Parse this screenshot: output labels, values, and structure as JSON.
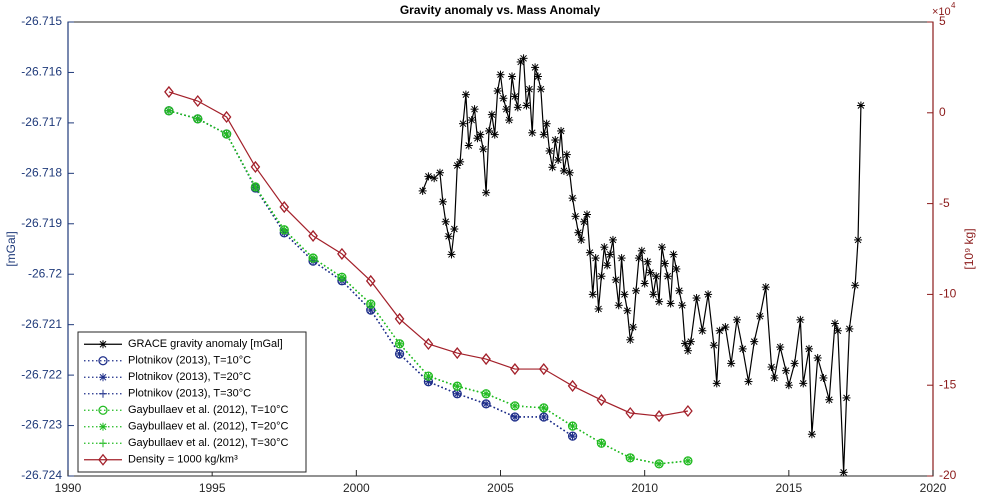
{
  "chart_data": {
    "type": "line",
    "title": "Gravity anomaly vs. Mass Anomaly",
    "ylabel": "[mGal]",
    "y2label": "[10⁹ kg]",
    "y2_multiplier_base": "×10",
    "y2_multiplier_exp": "4",
    "xlim": [
      1990,
      2020
    ],
    "xticks": [
      1990,
      1995,
      2000,
      2005,
      2010,
      2015,
      2020
    ],
    "ylim": [
      -26.724,
      -26.715
    ],
    "yticks": [
      -26.724,
      -26.723,
      -26.722,
      -26.721,
      -26.72,
      -26.719,
      -26.718,
      -26.717,
      -26.716,
      -26.715
    ],
    "y2lim": [
      -20,
      5
    ],
    "y2ticks": [
      -20,
      -15,
      -10,
      -5,
      0,
      5
    ],
    "legend": "lower left",
    "grid": false,
    "series": [
      {
        "name": "GRACE gravity anomaly [mGal]",
        "color": "#000000",
        "marker": "asterisk",
        "linestyle": "solid",
        "axis": "y2",
        "x": [
          2002.3,
          2002.5,
          2002.7,
          2002.9,
          2003.0,
          2003.1,
          2003.2,
          2003.3,
          2003.4,
          2003.5,
          2003.6,
          2003.7,
          2003.8,
          2003.9,
          2004.0,
          2004.1,
          2004.2,
          2004.3,
          2004.4,
          2004.5,
          2004.6,
          2004.7,
          2004.8,
          2004.9,
          2005.0,
          2005.1,
          2005.2,
          2005.3,
          2005.4,
          2005.5,
          2005.6,
          2005.7,
          2005.8,
          2005.9,
          2006.0,
          2006.1,
          2006.2,
          2006.3,
          2006.4,
          2006.5,
          2006.6,
          2006.7,
          2006.8,
          2006.9,
          2007.0,
          2007.1,
          2007.2,
          2007.3,
          2007.4,
          2007.5,
          2007.6,
          2007.7,
          2007.8,
          2007.9,
          2008.0,
          2008.1,
          2008.2,
          2008.3,
          2008.4,
          2008.5,
          2008.6,
          2008.7,
          2008.8,
          2008.9,
          2009.0,
          2009.1,
          2009.2,
          2009.3,
          2009.4,
          2009.5,
          2009.6,
          2009.7,
          2009.8,
          2009.9,
          2010.0,
          2010.1,
          2010.2,
          2010.3,
          2010.4,
          2010.5,
          2010.6,
          2010.7,
          2010.8,
          2010.9,
          2011.0,
          2011.1,
          2011.2,
          2011.3,
          2011.4,
          2011.5,
          2011.6,
          2011.8,
          2012.0,
          2012.2,
          2012.4,
          2012.5,
          2012.6,
          2012.8,
          2013.0,
          2013.2,
          2013.4,
          2013.6,
          2013.8,
          2014.0,
          2014.2,
          2014.4,
          2014.5,
          2014.7,
          2014.9,
          2015.0,
          2015.2,
          2015.4,
          2015.5,
          2015.7,
          2015.8,
          2016.0,
          2016.2,
          2016.4,
          2016.6,
          2016.7,
          2016.9,
          2017.0,
          2017.1,
          2017.3,
          2017.4,
          2017.5
        ],
        "values": [
          -4.3,
          -3.5,
          -3.6,
          -3.3,
          -4.9,
          -6.0,
          -6.8,
          -7.8,
          -6.4,
          -2.9,
          -2.7,
          -0.6,
          1.0,
          -1.8,
          -0.4,
          0.2,
          -1.4,
          -1.2,
          -2.0,
          -4.4,
          -1.0,
          -0.1,
          -1.2,
          1.2,
          2.1,
          0.8,
          0.2,
          -0.4,
          2.0,
          0.9,
          0.3,
          2.8,
          3.0,
          0.4,
          1.3,
          -1.1,
          2.5,
          2.0,
          1.3,
          -1.2,
          -0.6,
          -2.1,
          -3.0,
          -1.5,
          -2.6,
          -1.0,
          -3.2,
          -2.3,
          -3.3,
          -4.7,
          -5.7,
          -6.6,
          -7.0,
          -6.0,
          -5.6,
          -7.7,
          -10.0,
          -8.0,
          -10.8,
          -9.0,
          -7.4,
          -8.4,
          -7.8,
          -7.0,
          -9.2,
          -10.6,
          -8.0,
          -10.0,
          -10.9,
          -12.5,
          -11.8,
          -9.8,
          -8.0,
          -7.6,
          -9.4,
          -8.2,
          -8.8,
          -10.0,
          -9.0,
          -10.4,
          -7.4,
          -8.3,
          -9.0,
          -10.5,
          -7.8,
          -8.6,
          -9.8,
          -10.6,
          -12.7,
          -13.1,
          -12.6,
          -10.2,
          -12.0,
          -10.0,
          -12.8,
          -14.9,
          -12.0,
          -11.8,
          -13.8,
          -11.4,
          -13.0,
          -14.8,
          -12.6,
          -11.2,
          -9.6,
          -14.0,
          -14.6,
          -12.9,
          -14.2,
          -15.0,
          -13.8,
          -11.4,
          -14.9,
          -13.0,
          -17.7,
          -13.5,
          -14.6,
          -15.8,
          -11.6,
          -12.0,
          -19.8,
          -15.7,
          -11.9,
          -9.5,
          -7.0,
          0.4
        ]
      },
      {
        "name": "Plotnikov (2013), T=10°C",
        "color": "#1f2f8a",
        "marker": "circle",
        "linestyle": "dotted",
        "axis": "y",
        "x": [
          1993.5,
          1994.5,
          1995.5,
          1996.5,
          1997.5,
          1998.5,
          1999.5,
          2000.5,
          2001.5,
          2002.5,
          2003.5,
          2004.5,
          2005.5,
          2006.5,
          2007.5
        ],
        "values": [
          -26.71676,
          -26.71692,
          -26.71722,
          -26.71829,
          -26.71918,
          -26.71974,
          -26.72013,
          -26.72071,
          -26.72158,
          -26.72213,
          -26.72237,
          -26.72257,
          -26.72283,
          -26.72283,
          -26.72321
        ]
      },
      {
        "name": "Plotnikov (2013), T=20°C",
        "color": "#1f2f8a",
        "marker": "asterisk",
        "linestyle": "dotted",
        "axis": "y",
        "x": [
          1993.5,
          1994.5,
          1995.5,
          1996.5,
          1997.5,
          1998.5,
          1999.5,
          2000.5,
          2001.5,
          2002.5,
          2003.5,
          2004.5,
          2005.5,
          2006.5,
          2007.5
        ],
        "values": [
          -26.71676,
          -26.71692,
          -26.71722,
          -26.71829,
          -26.71918,
          -26.71974,
          -26.72013,
          -26.72071,
          -26.72158,
          -26.72213,
          -26.72237,
          -26.72257,
          -26.72283,
          -26.72283,
          -26.72321
        ]
      },
      {
        "name": "Plotnikov (2013), T=30°C",
        "color": "#1f2f8a",
        "marker": "plus",
        "linestyle": "dotted",
        "axis": "y",
        "x": [
          1993.5,
          1994.5,
          1995.5,
          1996.5,
          1997.5,
          1998.5,
          1999.5,
          2000.5,
          2001.5,
          2002.5,
          2003.5,
          2004.5,
          2005.5,
          2006.5,
          2007.5
        ],
        "values": [
          -26.71676,
          -26.71692,
          -26.71722,
          -26.71829,
          -26.71918,
          -26.71974,
          -26.72013,
          -26.72071,
          -26.72158,
          -26.72213,
          -26.72237,
          -26.72257,
          -26.72283,
          -26.72283,
          -26.72321
        ]
      },
      {
        "name": "Gaybullaev et al. (2012), T=10°C",
        "color": "#22bb22",
        "marker": "circle",
        "linestyle": "dotted",
        "axis": "y",
        "x": [
          1993.5,
          1994.5,
          1995.5,
          1996.5,
          1997.5,
          1998.5,
          1999.5,
          2000.5,
          2001.5,
          2002.5,
          2003.5,
          2004.5,
          2005.5,
          2006.5,
          2007.5,
          2008.5,
          2009.5,
          2010.5,
          2011.5
        ],
        "values": [
          -26.71676,
          -26.71692,
          -26.71722,
          -26.71827,
          -26.71912,
          -26.71968,
          -26.72006,
          -26.72059,
          -26.72138,
          -26.72202,
          -26.72222,
          -26.72237,
          -26.72261,
          -26.72265,
          -26.72301,
          -26.72335,
          -26.72364,
          -26.72376,
          -26.7237
        ]
      },
      {
        "name": "Gaybullaev et al. (2012), T=20°C",
        "color": "#22bb22",
        "marker": "asterisk",
        "linestyle": "dotted",
        "axis": "y",
        "x": [
          1993.5,
          1994.5,
          1995.5,
          1996.5,
          1997.5,
          1998.5,
          1999.5,
          2000.5,
          2001.5,
          2002.5,
          2003.5,
          2004.5,
          2005.5,
          2006.5,
          2007.5,
          2008.5,
          2009.5,
          2010.5,
          2011.5
        ],
        "values": [
          -26.71676,
          -26.71692,
          -26.71722,
          -26.71827,
          -26.71912,
          -26.71968,
          -26.72006,
          -26.72059,
          -26.72138,
          -26.72202,
          -26.72222,
          -26.72237,
          -26.72261,
          -26.72265,
          -26.72301,
          -26.72335,
          -26.72364,
          -26.72376,
          -26.7237
        ]
      },
      {
        "name": "Gaybullaev et al. (2012), T=30°C",
        "color": "#22bb22",
        "marker": "plus",
        "linestyle": "dotted",
        "axis": "y",
        "x": [
          1993.5,
          1994.5,
          1995.5,
          1996.5,
          1997.5,
          1998.5,
          1999.5,
          2000.5,
          2001.5,
          2002.5,
          2003.5,
          2004.5,
          2005.5,
          2006.5,
          2007.5,
          2008.5,
          2009.5,
          2010.5,
          2011.5
        ],
        "values": [
          -26.71676,
          -26.71692,
          -26.71722,
          -26.71827,
          -26.71912,
          -26.71968,
          -26.72006,
          -26.72059,
          -26.72138,
          -26.72202,
          -26.72222,
          -26.72237,
          -26.72261,
          -26.72265,
          -26.72301,
          -26.72335,
          -26.72364,
          -26.72376,
          -26.7237
        ]
      },
      {
        "name": "Density = 1000 kg/km³",
        "color": "#a3202a",
        "marker": "diamond",
        "linestyle": "solid",
        "axis": "y2",
        "x": [
          1993.5,
          1994.5,
          1995.5,
          1996.5,
          1997.5,
          1998.5,
          1999.5,
          2000.5,
          2001.5,
          2002.5,
          2003.5,
          2004.5,
          2005.5,
          2006.5,
          2007.5,
          2008.5,
          2009.5,
          2010.5,
          2011.5
        ],
        "values": [
          1.15,
          0.65,
          -0.23,
          -2.98,
          -5.19,
          -6.78,
          -7.77,
          -9.26,
          -11.35,
          -12.73,
          -13.23,
          -13.56,
          -14.11,
          -14.11,
          -15.04,
          -15.82,
          -16.53,
          -16.7,
          -16.42
        ]
      }
    ]
  }
}
